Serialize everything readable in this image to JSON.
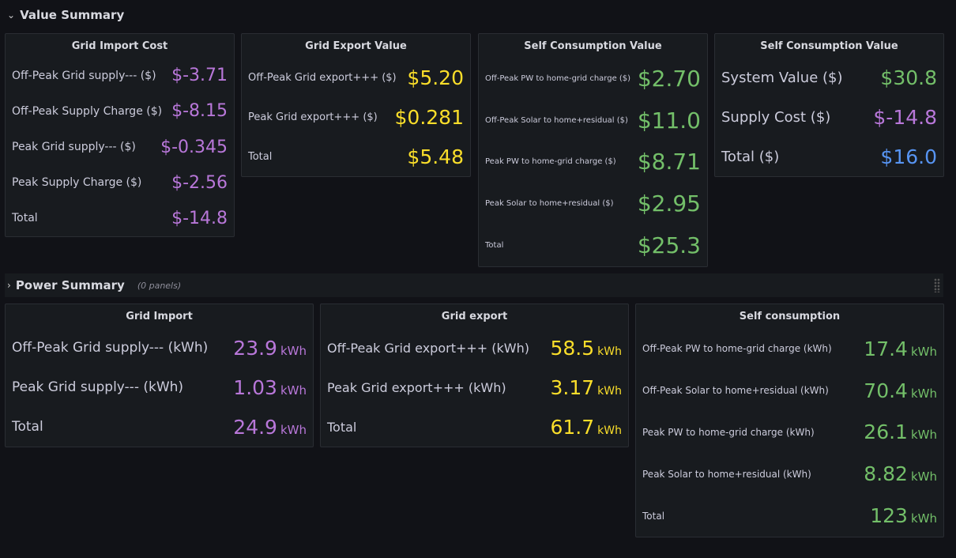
{
  "sections": [
    {
      "title": "Value Summary"
    },
    {
      "title": "Power Summary",
      "note": "(0 panels)"
    }
  ],
  "panels": [
    {
      "title": "Grid Import Cost",
      "rows": [
        {
          "label": "Off-Peak Grid supply--- ($)",
          "value": "$-3.71",
          "color": "#b877d9"
        },
        {
          "label": "Off-Peak Supply Charge ($)",
          "value": "$-8.15",
          "color": "#b877d9"
        },
        {
          "label": "Peak Grid supply--- ($)",
          "value": "$-0.345",
          "color": "#b877d9"
        },
        {
          "label": "Peak Supply Charge ($)",
          "value": "$-2.56",
          "color": "#b877d9"
        },
        {
          "label": "Total",
          "value": "$-14.8",
          "color": "#b877d9"
        }
      ]
    },
    {
      "title": "Grid Export Value",
      "rows": [
        {
          "label": "Off-Peak Grid export+++ ($)",
          "value": "$5.20",
          "color": "#fade2a"
        },
        {
          "label": "Peak Grid export+++ ($)",
          "value": "$0.281",
          "color": "#fade2a"
        },
        {
          "label": "Total",
          "value": "$5.48",
          "color": "#fade2a"
        }
      ]
    },
    {
      "title": "Self Consumption Value",
      "rows": [
        {
          "label": "Off-Peak PW to home-grid charge ($)",
          "value": "$2.70",
          "color": "#73bf69"
        },
        {
          "label": "Off-Peak Solar to home+residual ($)",
          "value": "$11.0",
          "color": "#73bf69"
        },
        {
          "label": "Peak PW to home-grid charge ($)",
          "value": "$8.71",
          "color": "#73bf69"
        },
        {
          "label": "Peak Solar to home+residual ($)",
          "value": "$2.95",
          "color": "#73bf69"
        },
        {
          "label": "Total",
          "value": "$25.3",
          "color": "#73bf69"
        }
      ]
    },
    {
      "title": "Self Consumption Value",
      "rows": [
        {
          "label": "System Value ($)",
          "value": "$30.8",
          "color": "#73bf69"
        },
        {
          "label": "Supply Cost ($)",
          "value": "$-14.8",
          "color": "#b877d9"
        },
        {
          "label": "Total ($)",
          "value": "$16.0",
          "color": "#5794f2"
        }
      ]
    },
    {
      "title": "Grid Import",
      "rows": [
        {
          "label": "Off-Peak Grid supply--- (kWh)",
          "value": "23.9",
          "unit": "kWh",
          "color": "#b877d9"
        },
        {
          "label": "Peak Grid supply--- (kWh)",
          "value": "1.03",
          "unit": "kWh",
          "color": "#b877d9"
        },
        {
          "label": "Total",
          "value": "24.9",
          "unit": "kWh",
          "color": "#b877d9"
        }
      ]
    },
    {
      "title": "Grid export",
      "rows": [
        {
          "label": "Off-Peak Grid export+++ (kWh)",
          "value": "58.5",
          "unit": "kWh",
          "color": "#fade2a"
        },
        {
          "label": "Peak Grid export+++ (kWh)",
          "value": "3.17",
          "unit": "kWh",
          "color": "#fade2a"
        },
        {
          "label": "Total",
          "value": "61.7",
          "unit": "kWh",
          "color": "#fade2a"
        }
      ]
    },
    {
      "title": "Self consumption",
      "rows": [
        {
          "label": "Off-Peak PW to home-grid charge (kWh)",
          "value": "17.4",
          "unit": "kWh",
          "color": "#73bf69"
        },
        {
          "label": "Off-Peak Solar to home+residual (kWh)",
          "value": "70.4",
          "unit": "kWh",
          "color": "#73bf69"
        },
        {
          "label": "Peak PW to home-grid charge (kWh)",
          "value": "26.1",
          "unit": "kWh",
          "color": "#73bf69"
        },
        {
          "label": "Peak Solar to home+residual (kWh)",
          "value": "8.82",
          "unit": "kWh",
          "color": "#73bf69"
        },
        {
          "label": "Total",
          "value": "123",
          "unit": "kWh",
          "color": "#73bf69"
        }
      ]
    }
  ]
}
